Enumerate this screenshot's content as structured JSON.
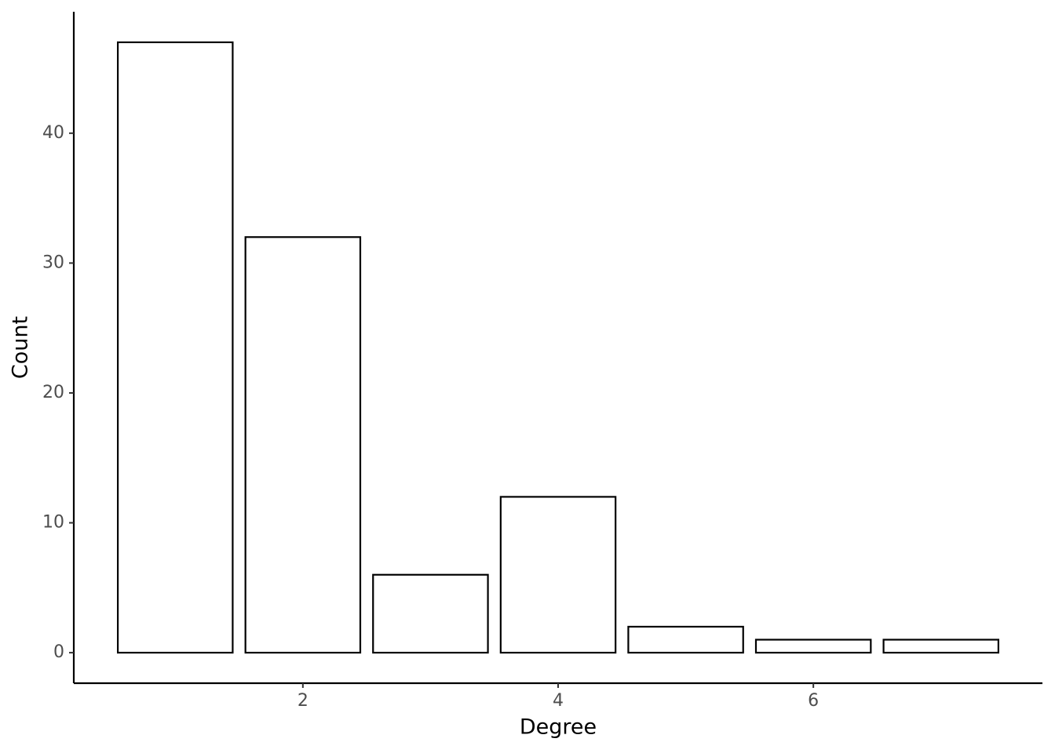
{
  "chart_data": {
    "type": "bar",
    "x_label": "Degree",
    "y_label": "Count",
    "x": [
      1,
      2,
      3,
      4,
      5,
      6,
      7
    ],
    "values": [
      47,
      32,
      6,
      12,
      2,
      1,
      1
    ],
    "color": "#ffffff",
    "edge_color": "#000000",
    "xlim": [
      0.205,
      7.795
    ],
    "xticks": [
      2,
      4,
      6
    ],
    "ylim": [
      -2.35,
      49.35
    ],
    "yticks": [
      0,
      10,
      20,
      30,
      40
    ],
    "grid": false
  }
}
